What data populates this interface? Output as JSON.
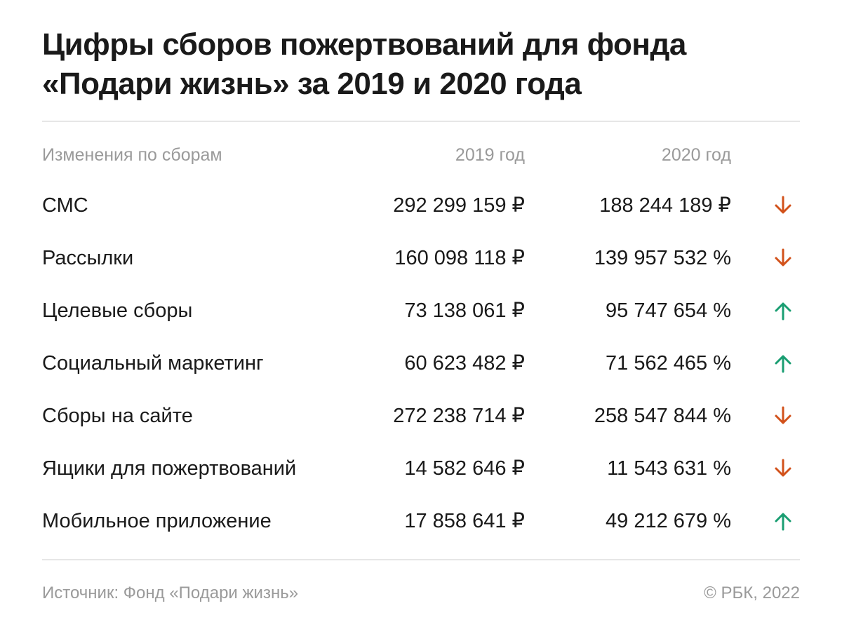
{
  "title": "Цифры сборов пожертвований для фонда «Подари жизнь» за 2019 и 2020 года",
  "chart_data": {
    "type": "table",
    "columns": [
      "Изменения по сборам",
      "2019 год",
      "2020 год"
    ],
    "rows": [
      {
        "label": "СМС",
        "v2019": "292 299 159 ₽",
        "v2020": "188 244 189 ₽",
        "trend": "down"
      },
      {
        "label": "Рассылки",
        "v2019": "160 098 118 ₽",
        "v2020": "139 957 532 %",
        "trend": "down"
      },
      {
        "label": "Целевые сборы",
        "v2019": "73 138 061 ₽",
        "v2020": "95 747 654 %",
        "trend": "up"
      },
      {
        "label": "Социальный маркетинг",
        "v2019": "60 623 482 ₽",
        "v2020": "71 562 465 %",
        "trend": "up"
      },
      {
        "label": "Сборы на сайте",
        "v2019": "272 238 714 ₽",
        "v2020": "258 547 844 %",
        "trend": "down"
      },
      {
        "label": "Ящики для пожертвований",
        "v2019": "14 582 646 ₽",
        "v2020": "11 543 631 %",
        "trend": "down"
      },
      {
        "label": "Мобильное приложение",
        "v2019": "17 858 641 ₽",
        "v2020": "49 212 679 %",
        "trend": "up"
      }
    ]
  },
  "footer": {
    "source": "Источник: Фонд «Подари жизнь»",
    "copyright": "© РБК, 2022"
  },
  "colors": {
    "down": "#d2521b",
    "up": "#1a9e72",
    "muted": "#9a9a9a",
    "text": "#1a1a1a",
    "rule": "#e6e6e6"
  },
  "icons": {
    "down": "arrow-down-icon",
    "up": "arrow-up-icon"
  }
}
